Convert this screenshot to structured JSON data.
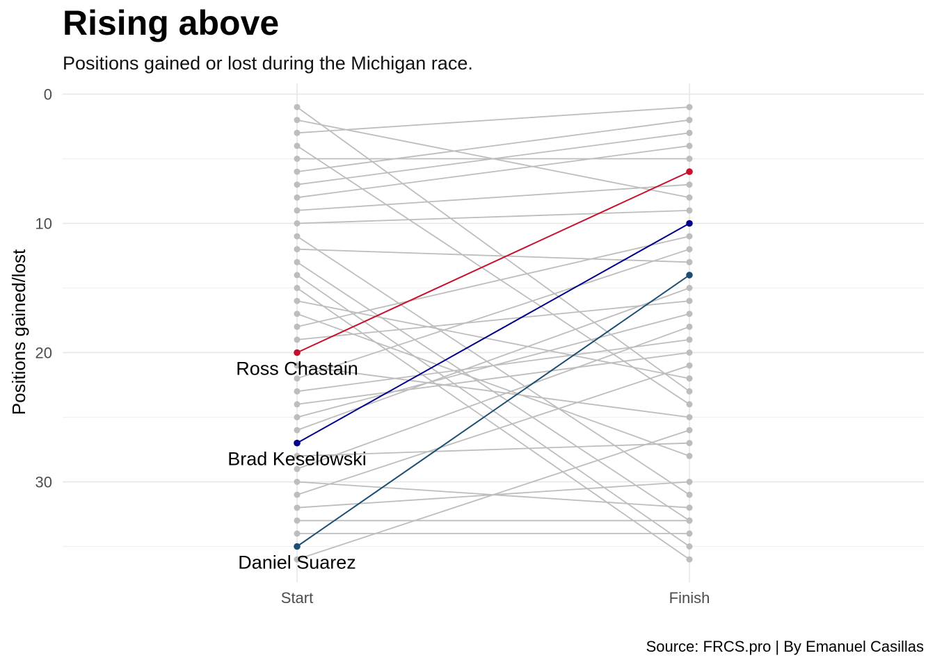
{
  "title": "Rising above",
  "subtitle": "Positions gained or lost during the Michigan race.",
  "caption": "Source: FRCS.pro | By Emanuel Casillas",
  "chart_data": {
    "type": "line",
    "chart_kind": "slope",
    "ylabel": "Positions gained/lost",
    "xlabel": "",
    "categories": [
      "Start",
      "Finish"
    ],
    "y_reversed": true,
    "ylim": [
      0,
      36
    ],
    "y_ticks": [
      0,
      10,
      20,
      30
    ],
    "grid": true,
    "legend": "none",
    "background_color": "#bdbdbd",
    "background_series": [
      {
        "values": [
          1,
          23
        ]
      },
      {
        "values": [
          2,
          8
        ]
      },
      {
        "values": [
          3,
          1
        ]
      },
      {
        "values": [
          4,
          24
        ]
      },
      {
        "values": [
          5,
          5
        ]
      },
      {
        "values": [
          6,
          2
        ]
      },
      {
        "values": [
          7,
          3
        ]
      },
      {
        "values": [
          8,
          4
        ]
      },
      {
        "values": [
          9,
          7
        ]
      },
      {
        "values": [
          10,
          9
        ]
      },
      {
        "values": [
          11,
          31
        ]
      },
      {
        "values": [
          12,
          13
        ]
      },
      {
        "values": [
          13,
          33
        ]
      },
      {
        "values": [
          14,
          35
        ]
      },
      {
        "values": [
          15,
          36
        ]
      },
      {
        "values": [
          16,
          22
        ]
      },
      {
        "values": [
          17,
          28
        ]
      },
      {
        "values": [
          18,
          11
        ]
      },
      {
        "values": [
          19,
          16
        ]
      },
      {
        "values": [
          21,
          25
        ]
      },
      {
        "values": [
          22,
          12
        ]
      },
      {
        "values": [
          23,
          19
        ]
      },
      {
        "values": [
          24,
          20
        ]
      },
      {
        "values": [
          25,
          17
        ]
      },
      {
        "values": [
          26,
          15
        ]
      },
      {
        "values": [
          28,
          27
        ]
      },
      {
        "values": [
          29,
          18
        ]
      },
      {
        "values": [
          30,
          32
        ]
      },
      {
        "values": [
          31,
          21
        ]
      },
      {
        "values": [
          32,
          30
        ]
      },
      {
        "values": [
          33,
          33
        ]
      },
      {
        "values": [
          34,
          34
        ]
      },
      {
        "values": [
          36,
          26
        ]
      }
    ],
    "series": [
      {
        "name": "Ross Chastain",
        "values": [
          20,
          6
        ],
        "color": "#c8102e"
      },
      {
        "name": "Brad Keselowski",
        "values": [
          27,
          10
        ],
        "color": "#00008b"
      },
      {
        "name": "Daniel Suarez",
        "values": [
          35,
          14
        ],
        "color": "#1b4f72"
      }
    ]
  }
}
